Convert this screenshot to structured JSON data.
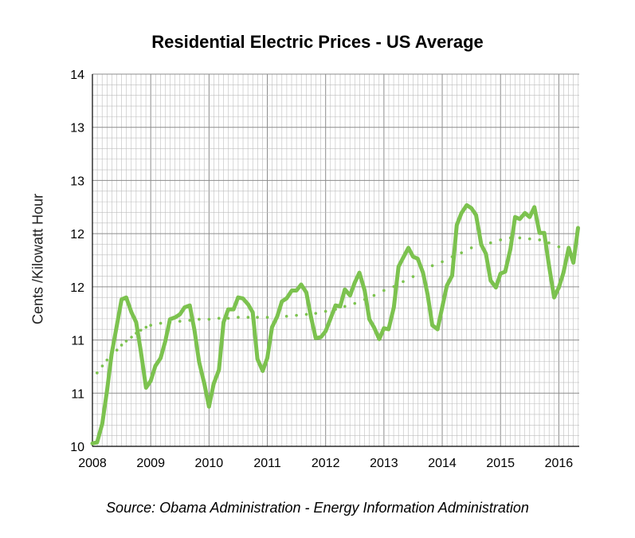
{
  "chart_data": {
    "type": "line",
    "title": "Residential Electric Prices - US Average",
    "ylabel": "Cents /Kilowatt Hour",
    "xlabel": "",
    "source": "Source: Obama Administration - Energy Information Administration",
    "xlim": [
      2008,
      2016.35
    ],
    "ylim": [
      10.25,
      14
    ],
    "y_tick_labels": [
      "10",
      "11",
      "11",
      "12",
      "12",
      "13",
      "13",
      "14"
    ],
    "x_tick_labels": [
      "2008",
      "2009",
      "2010",
      "2011",
      "2012",
      "2013",
      "2014",
      "2015",
      "2016"
    ],
    "grid": true,
    "legend": "none",
    "colors": {
      "series": "#7cc24f",
      "trend": "#7cc24f",
      "grid": "#bdbdbd"
    },
    "series": [
      {
        "style": "solid",
        "x": [
          2008.0,
          2008.08,
          2008.17,
          2008.25,
          2008.33,
          2008.42,
          2008.5,
          2008.58,
          2008.67,
          2008.75,
          2008.83,
          2008.92,
          2009.0,
          2009.08,
          2009.17,
          2009.25,
          2009.33,
          2009.42,
          2009.5,
          2009.58,
          2009.67,
          2009.75,
          2009.83,
          2009.92,
          2010.0,
          2010.08,
          2010.17,
          2010.25,
          2010.33,
          2010.42,
          2010.5,
          2010.58,
          2010.67,
          2010.75,
          2010.83,
          2010.92,
          2011.0,
          2011.08,
          2011.17,
          2011.25,
          2011.33,
          2011.42,
          2011.5,
          2011.58,
          2011.67,
          2011.75,
          2011.83,
          2011.92,
          2012.0,
          2012.08,
          2012.17,
          2012.25,
          2012.33,
          2012.42,
          2012.5,
          2012.58,
          2012.67,
          2012.75,
          2012.83,
          2012.92,
          2013.0,
          2013.08,
          2013.17,
          2013.25,
          2013.33,
          2013.42,
          2013.5,
          2013.58,
          2013.67,
          2013.75,
          2013.83,
          2013.92,
          2014.0,
          2014.08,
          2014.17,
          2014.25,
          2014.33,
          2014.42,
          2014.5,
          2014.58,
          2014.67,
          2014.75,
          2014.83,
          2014.92,
          2015.0,
          2015.08,
          2015.17,
          2015.25,
          2015.33,
          2015.42,
          2015.5,
          2015.58,
          2015.67,
          2015.75,
          2015.83,
          2015.92,
          2016.0,
          2016.08,
          2016.17,
          2016.25,
          2016.33
        ],
        "values": [
          10.28,
          10.29,
          10.48,
          10.81,
          11.18,
          11.47,
          11.73,
          11.75,
          11.6,
          11.5,
          11.21,
          10.84,
          10.91,
          11.06,
          11.14,
          11.31,
          11.53,
          11.55,
          11.58,
          11.65,
          11.67,
          11.42,
          11.1,
          10.88,
          10.65,
          10.88,
          11.02,
          11.5,
          11.63,
          11.63,
          11.75,
          11.74,
          11.68,
          11.6,
          11.13,
          11.01,
          11.14,
          11.45,
          11.56,
          11.71,
          11.74,
          11.82,
          11.82,
          11.88,
          11.8,
          11.55,
          11.34,
          11.35,
          11.41,
          11.53,
          11.67,
          11.66,
          11.83,
          11.77,
          11.9,
          12.0,
          11.82,
          11.53,
          11.45,
          11.33,
          11.44,
          11.43,
          11.65,
          12.06,
          12.15,
          12.25,
          12.16,
          12.14,
          12.0,
          11.78,
          11.47,
          11.43,
          11.65,
          11.87,
          11.97,
          12.48,
          12.6,
          12.68,
          12.65,
          12.58,
          12.28,
          12.19,
          11.92,
          11.85,
          11.99,
          12.01,
          12.24,
          12.56,
          12.54,
          12.6,
          12.56,
          12.66,
          12.4,
          12.4,
          12.08,
          11.75,
          11.85,
          12.0,
          12.25,
          12.1,
          12.45
        ]
      },
      {
        "style": "dotted-trend",
        "x": [
          2008.08,
          2008.17,
          2008.25,
          2008.33,
          2008.42,
          2008.5,
          2008.58,
          2008.67,
          2008.75,
          2008.83,
          2008.92,
          2009.0,
          2009.17,
          2009.33,
          2009.5,
          2009.67,
          2009.83,
          2010.0,
          2010.17,
          2010.33,
          2010.5,
          2010.67,
          2010.83,
          2011.0,
          2011.17,
          2011.33,
          2011.5,
          2011.67,
          2011.83,
          2012.0,
          2012.17,
          2012.33,
          2012.5,
          2012.67,
          2012.83,
          2013.0,
          2013.17,
          2013.33,
          2013.5,
          2013.67,
          2013.83,
          2014.0,
          2014.17,
          2014.33,
          2014.5,
          2014.67,
          2014.83,
          2015.0,
          2015.17,
          2015.33,
          2015.5,
          2015.67,
          2015.83,
          2016.0,
          2016.17
        ],
        "values": [
          10.99,
          11.06,
          11.12,
          11.17,
          11.22,
          11.27,
          11.31,
          11.35,
          11.39,
          11.42,
          11.45,
          11.47,
          11.49,
          11.5,
          11.51,
          11.52,
          11.53,
          11.53,
          11.54,
          11.54,
          11.55,
          11.55,
          11.55,
          11.55,
          11.56,
          11.56,
          11.57,
          11.58,
          11.59,
          11.61,
          11.63,
          11.66,
          11.69,
          11.73,
          11.77,
          11.82,
          11.86,
          11.91,
          11.96,
          12.01,
          12.07,
          12.11,
          12.16,
          12.2,
          12.25,
          12.28,
          12.3,
          12.33,
          12.35,
          12.35,
          12.34,
          12.33,
          12.3,
          12.26,
          12.22
        ]
      }
    ]
  }
}
